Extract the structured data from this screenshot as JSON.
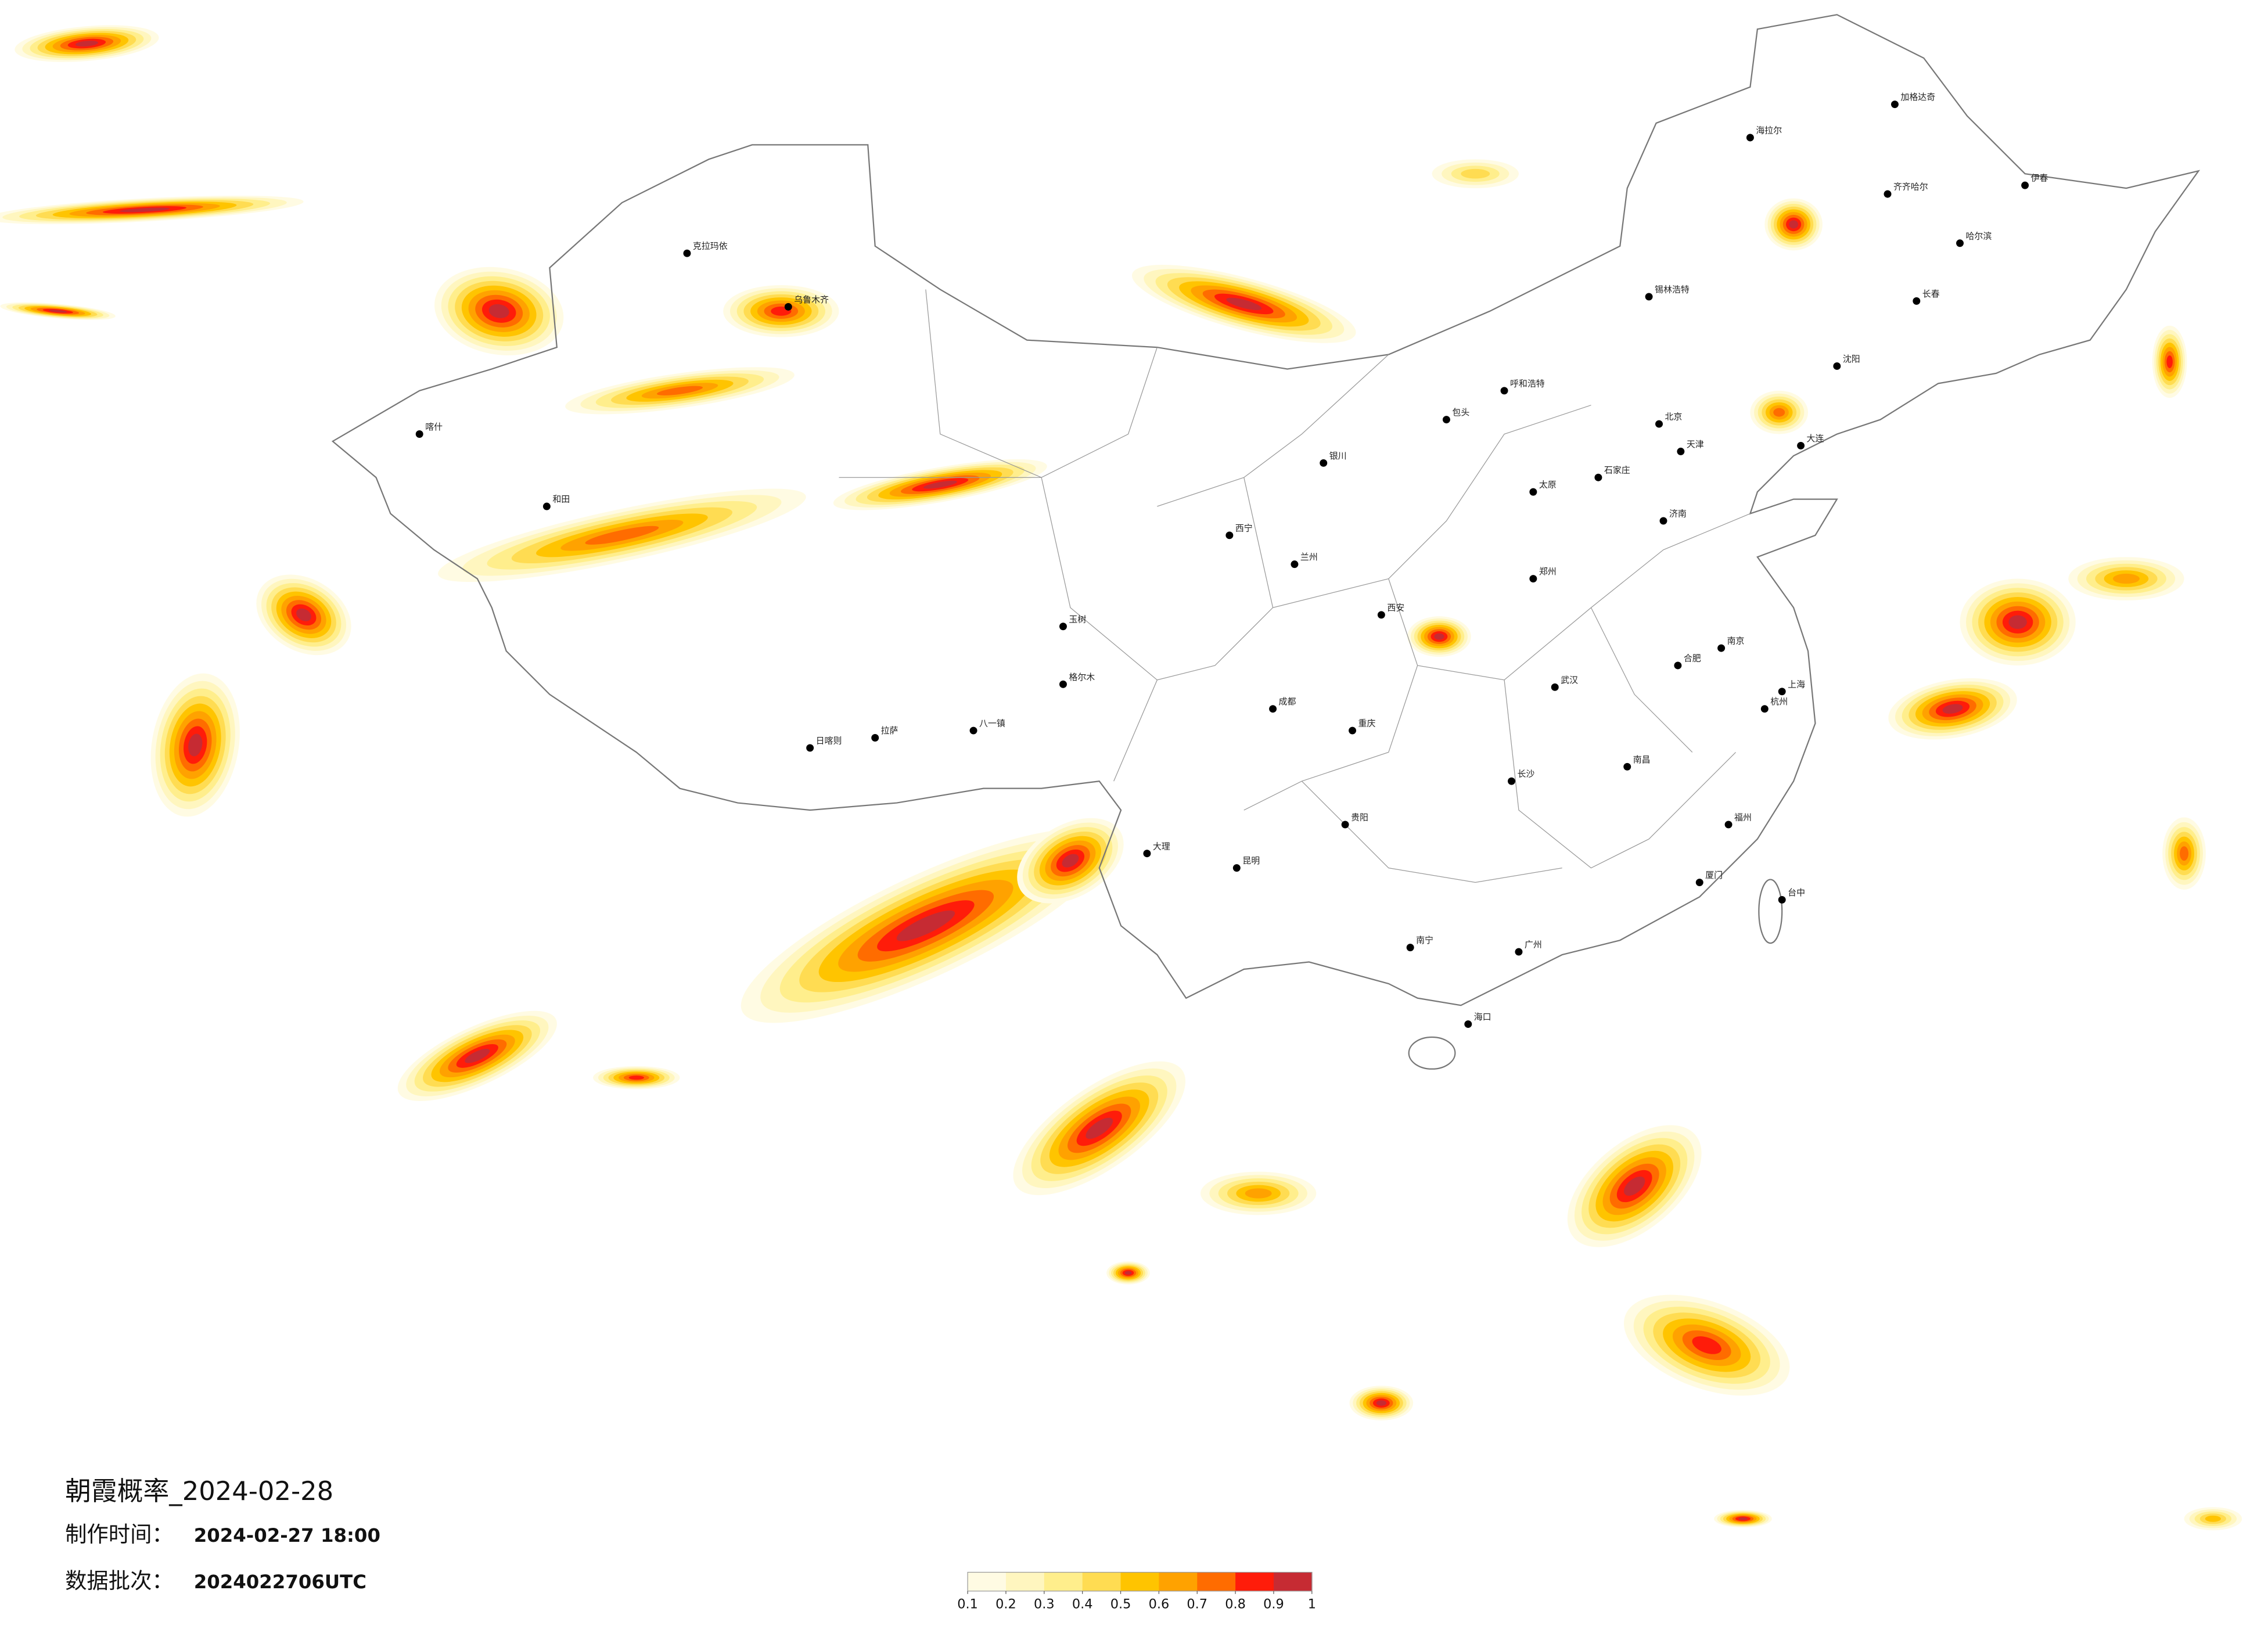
{
  "header": {
    "title": "朝霞概率_2024-02-28",
    "made_label": "制作时间：",
    "made_time": "2024-02-27 18:00",
    "batch_label": "数据批次：",
    "batch": "2024022706UTC"
  },
  "legend": {
    "colors": [
      "#fffbe3",
      "#fff6bf",
      "#ffee8c",
      "#ffdc52",
      "#ffc400",
      "#ffa200",
      "#ff6c00",
      "#ff1c0a",
      "#c62b33"
    ],
    "ticks": [
      0.1,
      0.2,
      0.3,
      0.4,
      0.5,
      0.6,
      0.7,
      0.8,
      0.9,
      1
    ]
  },
  "cities": [
    "北京",
    "天津",
    "上海",
    "广州",
    "重庆",
    "成都",
    "西安",
    "武汉",
    "长沙",
    "南京",
    "杭州",
    "福州",
    "郑州",
    "济南",
    "太原",
    "石家庄",
    "呼和浩特",
    "哈尔滨",
    "长春",
    "沈阳",
    "大连",
    "兰州",
    "西宁",
    "银川",
    "乌鲁木齐",
    "拉萨",
    "昆明",
    "贵阳",
    "南宁",
    "海口",
    "台中",
    "南昌",
    "合肥",
    "喀什",
    "和田",
    "克拉玛依",
    "加格达奇",
    "海拉尔",
    "齐齐哈尔",
    "伊春",
    "大理",
    "日喀则",
    "八一镇",
    "格尔木",
    "玉树",
    "锡林浩特",
    "包头",
    "厦门"
  ]
}
